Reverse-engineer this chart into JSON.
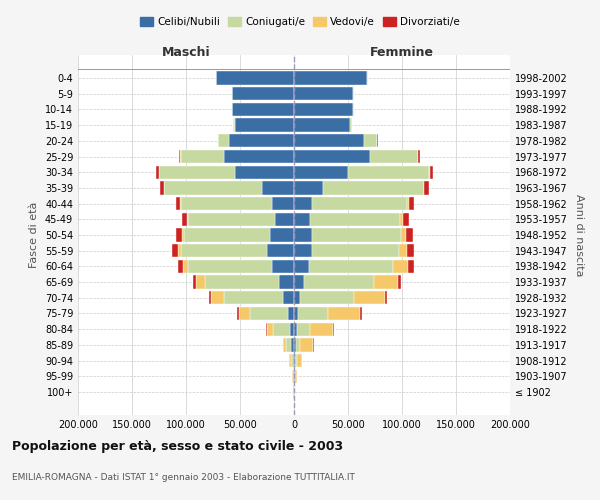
{
  "age_groups": [
    "100+",
    "95-99",
    "90-94",
    "85-89",
    "80-84",
    "75-79",
    "70-74",
    "65-69",
    "60-64",
    "55-59",
    "50-54",
    "45-49",
    "40-44",
    "35-39",
    "30-34",
    "25-29",
    "20-24",
    "15-19",
    "10-14",
    "5-9",
    "0-4"
  ],
  "birth_years": [
    "≤ 1902",
    "1903-1907",
    "1908-1912",
    "1913-1917",
    "1918-1922",
    "1923-1927",
    "1928-1932",
    "1933-1937",
    "1938-1942",
    "1943-1947",
    "1948-1952",
    "1953-1957",
    "1958-1962",
    "1963-1967",
    "1968-1972",
    "1973-1977",
    "1978-1982",
    "1983-1987",
    "1988-1992",
    "1993-1997",
    "1998-2002"
  ],
  "colors": {
    "celibi": "#3a6ea5",
    "coniugati": "#c5d9a0",
    "vedovi": "#f5c96a",
    "divorziati": "#cc2222"
  },
  "males": {
    "celibi": [
      500,
      800,
      1200,
      2500,
      4000,
      6000,
      10000,
      14000,
      20000,
      25000,
      22000,
      18000,
      20000,
      30000,
      55000,
      65000,
      60000,
      55000,
      57000,
      57000,
      72000
    ],
    "coniugati": [
      200,
      500,
      2000,
      5000,
      15000,
      35000,
      55000,
      68000,
      78000,
      80000,
      80000,
      80000,
      85000,
      90000,
      70000,
      40000,
      10000,
      1000,
      500,
      200,
      100
    ],
    "vedovi": [
      100,
      300,
      1000,
      2500,
      6000,
      10000,
      12000,
      9000,
      5000,
      2500,
      1500,
      800,
      500,
      300,
      200,
      100,
      50,
      20,
      10,
      5,
      5
    ],
    "divorziati": [
      50,
      100,
      200,
      300,
      500,
      1500,
      2000,
      2500,
      4000,
      5000,
      5500,
      5000,
      4000,
      3500,
      2500,
      1000,
      200,
      50,
      20,
      10,
      5
    ]
  },
  "females": {
    "celibi": [
      300,
      600,
      900,
      1800,
      2500,
      3500,
      6000,
      9000,
      14000,
      17000,
      17000,
      15000,
      17000,
      27000,
      50000,
      70000,
      65000,
      52000,
      55000,
      55000,
      68000
    ],
    "coniugati": [
      200,
      400,
      1500,
      4000,
      12000,
      28000,
      50000,
      65000,
      78000,
      80000,
      82000,
      83000,
      88000,
      93000,
      75000,
      45000,
      12000,
      1500,
      500,
      200,
      100
    ],
    "vedovi": [
      500,
      1500,
      5000,
      12000,
      22000,
      30000,
      28000,
      22000,
      14000,
      8000,
      4500,
      2500,
      1500,
      800,
      500,
      200,
      80,
      30,
      15,
      8,
      5
    ],
    "divorziati": [
      30,
      80,
      150,
      300,
      600,
      1500,
      2500,
      3500,
      5000,
      6000,
      6500,
      6000,
      5000,
      4500,
      3000,
      1200,
      300,
      60,
      20,
      10,
      5
    ]
  },
  "xlim": 200000,
  "xticks": [
    -200000,
    -150000,
    -100000,
    -50000,
    0,
    50000,
    100000,
    150000,
    200000
  ],
  "xticklabels": [
    "200.000",
    "150.000",
    "100.000",
    "50.000",
    "0",
    "50.000",
    "100.000",
    "150.000",
    "200.000"
  ],
  "title": "Popolazione per età, sesso e stato civile - 2003",
  "subtitle": "EMILIA-ROMAGNA - Dati ISTAT 1° gennaio 2003 - Elaborazione TUTTITALIA.IT",
  "ylabel_left": "Fasce di età",
  "ylabel_right": "Anni di nascita",
  "legend_labels": [
    "Celibi/Nubili",
    "Coniugati/e",
    "Vedovi/e",
    "Divorziati/e"
  ],
  "maschi_label": "Maschi",
  "femmine_label": "Femmine",
  "bg_color": "#f5f5f5",
  "plot_bg_color": "#ffffff"
}
